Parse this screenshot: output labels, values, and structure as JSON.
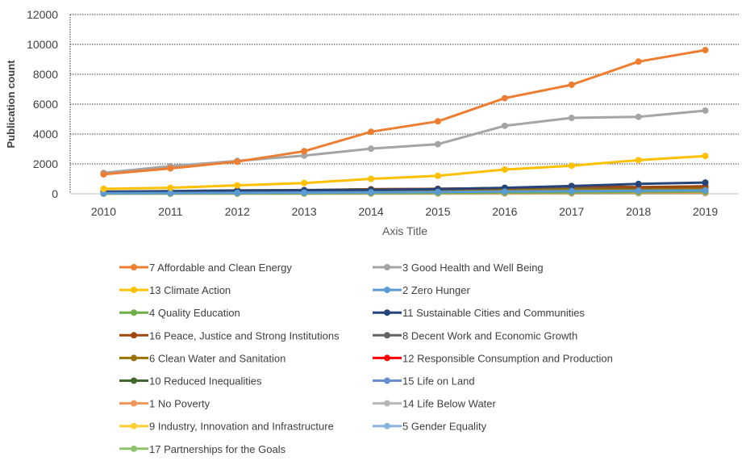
{
  "chart_data": {
    "type": "line",
    "xlabel": "Axis Title",
    "ylabel": "Publication count",
    "ylim": [
      0,
      12000
    ],
    "yticks": [
      0,
      2000,
      4000,
      6000,
      8000,
      10000,
      12000
    ],
    "grid": true,
    "legend_position": "bottom",
    "x": [
      "2010",
      "2011",
      "2012",
      "2013",
      "2014",
      "2015",
      "2016",
      "2017",
      "2018",
      "2019"
    ],
    "series": [
      {
        "name": "7 Affordable and Clean Energy",
        "color": "#ED7D31",
        "values": [
          1300,
          1700,
          2150,
          2850,
          4150,
          4850,
          6400,
          7300,
          8850,
          9620
        ]
      },
      {
        "name": "3 Good Health and Well Being",
        "color": "#A5A5A5",
        "values": [
          1400,
          1850,
          2200,
          2550,
          3020,
          3320,
          4550,
          5080,
          5150,
          5570
        ]
      },
      {
        "name": "13 Climate Action",
        "color": "#FFC000",
        "values": [
          330,
          400,
          560,
          720,
          1000,
          1200,
          1620,
          1880,
          2250,
          2530
        ]
      },
      {
        "name": "2 Zero Hunger",
        "color": "#5B9BD5",
        "values": [
          40,
          50,
          60,
          80,
          100,
          120,
          150,
          180,
          200,
          230
        ]
      },
      {
        "name": "4 Quality Education",
        "color": "#70AD47",
        "values": [
          20,
          25,
          30,
          40,
          50,
          60,
          80,
          100,
          120,
          140
        ]
      },
      {
        "name": "11 Sustainable Cities and Communities",
        "color": "#264478",
        "values": [
          130,
          160,
          200,
          230,
          260,
          310,
          400,
          520,
          660,
          750
        ]
      },
      {
        "name": "16 Peace, Justice and Strong Institutions",
        "color": "#9E480E",
        "values": [
          100,
          150,
          200,
          220,
          300,
          330,
          380,
          500,
          450,
          500
        ]
      },
      {
        "name": "8 Decent Work and Economic Growth",
        "color": "#636363",
        "values": [
          150,
          180,
          230,
          250,
          300,
          330,
          380,
          450,
          420,
          500
        ]
      },
      {
        "name": "6 Clean Water and Sanitation",
        "color": "#997300",
        "values": [
          100,
          120,
          160,
          180,
          210,
          230,
          260,
          300,
          330,
          370
        ]
      },
      {
        "name": "12 Responsible Consumption and Production",
        "color": "#FF0000",
        "values": [
          30,
          40,
          60,
          70,
          90,
          110,
          150,
          250,
          350,
          480
        ]
      },
      {
        "name": "10 Reduced Inequalities",
        "color": "#43682B",
        "values": [
          20,
          30,
          40,
          50,
          60,
          80,
          100,
          130,
          160,
          200
        ]
      },
      {
        "name": "15 Life on Land",
        "color": "#698ED0",
        "values": [
          30,
          40,
          50,
          60,
          70,
          90,
          110,
          140,
          170,
          200
        ]
      },
      {
        "name": "1 No Poverty",
        "color": "#F1975A",
        "values": [
          10,
          15,
          20,
          25,
          30,
          40,
          50,
          60,
          70,
          80
        ]
      },
      {
        "name": "14 Life Below Water",
        "color": "#B7B7B7",
        "values": [
          10,
          15,
          20,
          25,
          30,
          35,
          45,
          55,
          65,
          75
        ]
      },
      {
        "name": "9 Industry, Innovation and Infrastructure",
        "color": "#FFCD33",
        "values": [
          10,
          12,
          15,
          20,
          25,
          30,
          40,
          50,
          60,
          70
        ]
      },
      {
        "name": "5 Gender Equality",
        "color": "#8CB4E0",
        "values": [
          5,
          8,
          10,
          12,
          15,
          20,
          25,
          30,
          35,
          40
        ]
      },
      {
        "name": "17 Partnerships for the Goals",
        "color": "#8FC46F",
        "values": [
          5,
          6,
          8,
          10,
          12,
          15,
          18,
          22,
          26,
          30
        ]
      }
    ]
  }
}
